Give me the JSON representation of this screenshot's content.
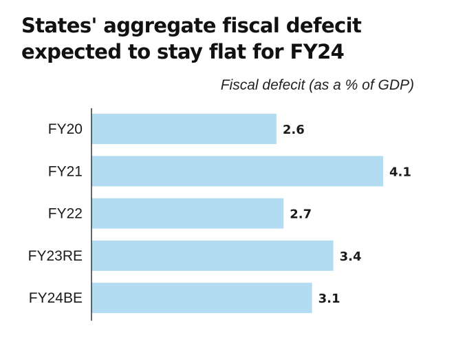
{
  "chart_data": {
    "type": "bar",
    "orientation": "horizontal",
    "title": "States' aggregate fiscal defecit expected to stay flat for FY24",
    "subtitle": "Fiscal defecit (as a % of GDP)",
    "categories": [
      "FY20",
      "FY21",
      "FY22",
      "FY23RE",
      "FY24BE"
    ],
    "values": [
      2.6,
      4.1,
      2.7,
      3.4,
      3.1
    ],
    "data_labels": [
      "2.6",
      "4.1",
      "2.7",
      "3.4",
      "3.1"
    ],
    "xlim": [
      0,
      4.1
    ],
    "grid": false,
    "legend": "none",
    "colors": {
      "bar": "#b3dcf2",
      "axis": "#333333",
      "text": "#111111"
    }
  }
}
